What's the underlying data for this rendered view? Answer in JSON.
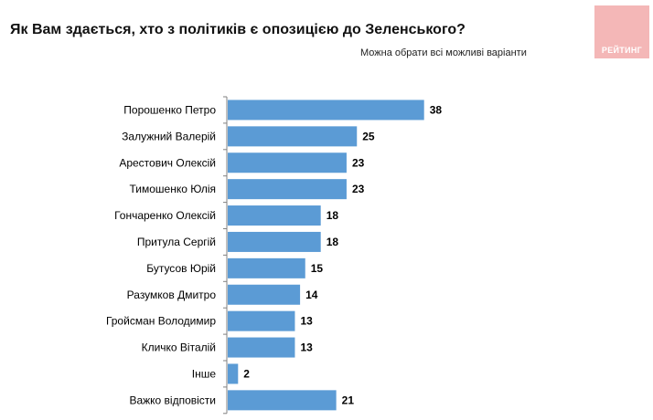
{
  "header": {
    "title": "Як Вам здається, хто з політиків є опозицією до Зеленського?",
    "subtitle": "Можна обрати всі можливі варіанти",
    "logo_text": "РЕЙТИНГ"
  },
  "colors": {
    "bar": "#5b9bd5",
    "axis": "#808080",
    "logo_bg": "#f4b7b7"
  },
  "chart_data": {
    "type": "bar",
    "orientation": "horizontal",
    "title": "Як Вам здається, хто з політиків є опозицією до Зеленського?",
    "subtitle": "Можна обрати всі можливі варіанти",
    "categories": [
      "Порошенко Петро",
      "Залужний Валерій",
      "Арестович Олексій",
      "Тимошенко Юлія",
      "Гончаренко Олексій",
      "Притула Сергій",
      "Бутусов Юрій",
      "Разумков Дмитро",
      "Гройсман Володимир",
      "Кличко Віталій",
      "Інше",
      "Важко відповісти"
    ],
    "values": [
      38,
      25,
      23,
      23,
      18,
      18,
      15,
      14,
      13,
      13,
      2,
      21
    ],
    "xlim": [
      0,
      40
    ],
    "grid": false,
    "legend": "none"
  }
}
